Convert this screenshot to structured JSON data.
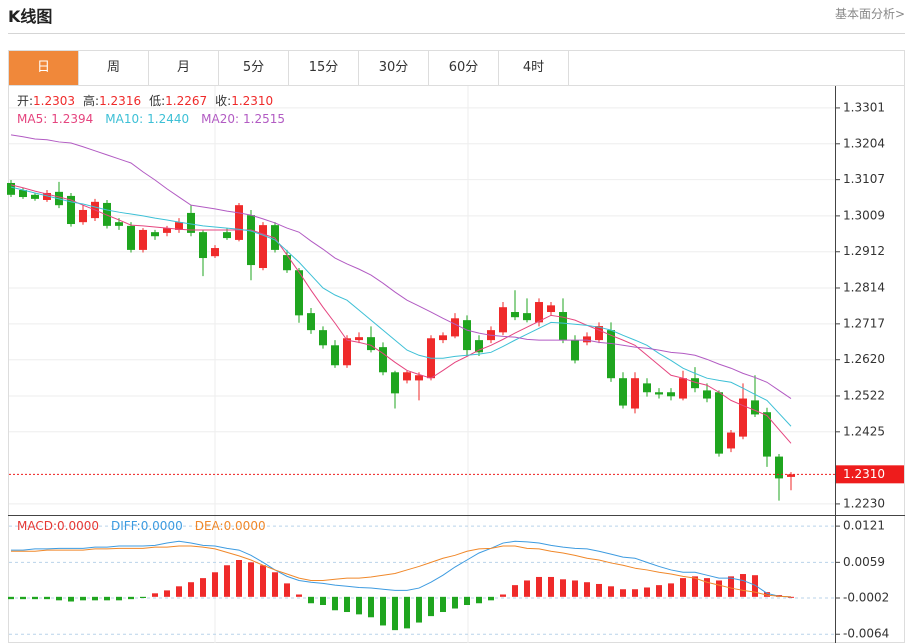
{
  "header": {
    "title": "K线图",
    "link": "基本面分析>"
  },
  "tabs": {
    "items": [
      "日",
      "周",
      "月",
      "5分",
      "15分",
      "30分",
      "60分",
      "4时"
    ],
    "active": 0
  },
  "chart_data": [
    {
      "type": "candlestick",
      "info": [
        {
          "label": "开:",
          "value": "1.2303"
        },
        {
          "label": "高:",
          "value": "1.2316"
        },
        {
          "label": "低:",
          "value": "1.2267"
        },
        {
          "label": "收:",
          "value": "1.2310"
        }
      ],
      "up_color": "#ef2a2a",
      "down_color": "#1fa51f",
      "open": [
        1.3098,
        1.3079,
        1.3066,
        1.3052,
        1.3074,
        1.3063,
        1.2992,
        1.3003,
        1.3044,
        1.2992,
        1.2982,
        1.2917,
        1.2965,
        1.2963,
        1.2971,
        1.3017,
        1.2965,
        1.29,
        1.2965,
        1.2944,
        1.3011,
        1.2868,
        1.2984,
        1.2903,
        1.2862,
        1.2746,
        1.27,
        1.2659,
        1.2605,
        1.2673,
        1.2681,
        1.2654,
        1.2586,
        1.2564,
        1.2564,
        1.257,
        1.2673,
        1.2683,
        1.2727,
        1.2673,
        1.2673,
        1.2694,
        1.2749,
        1.2746,
        1.2721,
        1.2749,
        1.2749,
        1.2673,
        1.2667,
        1.2673,
        1.27,
        1.257,
        1.2488,
        1.2556,
        1.2532,
        1.2532,
        1.2515,
        1.257,
        1.2537,
        1.2532,
        1.238,
        1.2412,
        1.251,
        1.2478,
        1.2358,
        1.2303
      ],
      "high": [
        1.3106,
        1.3085,
        1.3071,
        1.3079,
        1.3101,
        1.3071,
        1.3038,
        1.3055,
        1.3052,
        1.3003,
        1.2992,
        1.2976,
        1.2971,
        1.2982,
        1.3003,
        1.3038,
        1.2971,
        1.293,
        1.2976,
        1.3044,
        1.3025,
        1.2992,
        1.2992,
        1.2917,
        1.2868,
        1.276,
        1.271,
        1.2673,
        1.2686,
        1.2694,
        1.271,
        1.2667,
        1.259,
        1.259,
        1.2586,
        1.2686,
        1.2694,
        1.2746,
        1.274,
        1.2686,
        1.271,
        1.2776,
        1.2808,
        1.2786,
        1.2786,
        1.2776,
        1.2786,
        1.2686,
        1.2694,
        1.2721,
        1.2721,
        1.2586,
        1.2586,
        1.257,
        1.2543,
        1.2543,
        1.259,
        1.26,
        1.2556,
        1.2537,
        1.243,
        1.2556,
        1.2578,
        1.249,
        1.2365,
        1.2316
      ],
      "low": [
        1.306,
        1.3055,
        1.305,
        1.3047,
        1.303,
        1.298,
        1.2985,
        1.2995,
        1.2975,
        1.2971,
        1.291,
        1.291,
        1.2944,
        1.2954,
        1.2963,
        1.2954,
        1.2846,
        1.2895,
        1.2944,
        1.294,
        1.2835,
        1.2862,
        1.291,
        1.2855,
        1.272,
        1.269,
        1.265,
        1.2598,
        1.2598,
        1.2665,
        1.264,
        1.2578,
        1.2488,
        1.2556,
        1.251,
        1.2564,
        1.2665,
        1.2678,
        1.263,
        1.263,
        1.2665,
        1.2686,
        1.2727,
        1.2721,
        1.271,
        1.274,
        1.2665,
        1.261,
        1.2659,
        1.2665,
        1.256,
        1.2488,
        1.2475,
        1.252,
        1.2515,
        1.251,
        1.251,
        1.2532,
        1.2505,
        1.2358,
        1.237,
        1.2405,
        1.2465,
        1.233,
        1.2239,
        1.2267
      ],
      "close": [
        1.3066,
        1.306,
        1.3055,
        1.3071,
        1.3038,
        1.2987,
        1.3025,
        1.3047,
        1.2982,
        1.2982,
        1.2917,
        1.2971,
        1.2954,
        1.2976,
        1.2992,
        1.2963,
        1.2895,
        1.2922,
        1.2949,
        1.3038,
        1.2876,
        1.2984,
        1.2917,
        1.2862,
        1.274,
        1.27,
        1.2659,
        1.2605,
        1.2678,
        1.2681,
        1.2646,
        1.2586,
        1.2529,
        1.2586,
        1.2578,
        1.2678,
        1.2686,
        1.2732,
        1.2646,
        1.264,
        1.27,
        1.2762,
        1.2735,
        1.2727,
        1.2776,
        1.2767,
        1.2673,
        1.2618,
        1.2683,
        1.2711,
        1.257,
        1.2496,
        1.257,
        1.2532,
        1.2526,
        1.2521,
        1.257,
        1.2543,
        1.2515,
        1.2366,
        1.2423,
        1.2515,
        1.2472,
        1.2358,
        1.2299,
        1.231
      ],
      "series": [
        {
          "name": "MA5:",
          "value_label": "1.2394",
          "color": "#e5457f",
          "values": [
            1.3093,
            1.3085,
            1.3076,
            1.3068,
            1.306,
            1.3052,
            1.3038,
            1.3025,
            1.3011,
            1.2998,
            1.2984,
            1.2982,
            1.2979,
            1.2976,
            1.2973,
            1.2971,
            1.2971,
            1.2971,
            1.2971,
            1.2971,
            1.2971,
            1.296,
            1.2949,
            1.2903,
            1.2857,
            1.2808,
            1.2762,
            1.2719,
            1.2673,
            1.2667,
            1.2659,
            1.2637,
            1.2613,
            1.2591,
            1.258,
            1.257,
            1.2591,
            1.2613,
            1.2629,
            1.2646,
            1.2659,
            1.2675,
            1.2692,
            1.2708,
            1.2724,
            1.274,
            1.2735,
            1.2727,
            1.2713,
            1.27,
            1.2686,
            1.2673,
            1.2659,
            1.2632,
            1.2605,
            1.2578,
            1.257,
            1.2559,
            1.2551,
            1.2532,
            1.251,
            1.2496,
            1.2483,
            1.2469,
            1.2431,
            1.2394
          ]
        },
        {
          "name": "MA10:",
          "value_label": "1.2440",
          "color": "#3ec0d6",
          "values": [
            1.3087,
            1.3079,
            1.3071,
            1.3063,
            1.3055,
            1.3047,
            1.3041,
            1.3033,
            1.3025,
            1.3019,
            1.3014,
            1.3009,
            1.3003,
            1.2998,
            1.2992,
            1.2987,
            1.2982,
            1.2979,
            1.2976,
            1.2973,
            1.2968,
            1.2957,
            1.2944,
            1.2914,
            1.2884,
            1.2849,
            1.2814,
            1.2795,
            1.2781,
            1.2754,
            1.2727,
            1.27,
            1.2673,
            1.2646,
            1.2632,
            1.2624,
            1.2624,
            1.2629,
            1.2632,
            1.2635,
            1.264,
            1.2656,
            1.2673,
            1.2689,
            1.2705,
            1.2721,
            1.2719,
            1.2716,
            1.2713,
            1.2708,
            1.27,
            1.2686,
            1.2673,
            1.2659,
            1.2637,
            1.2618,
            1.2597,
            1.2583,
            1.257,
            1.2564,
            1.2559,
            1.2543,
            1.2526,
            1.251,
            1.2475,
            1.244
          ]
        },
        {
          "name": "MA20:",
          "value_label": "1.2515",
          "color": "#b25bc3",
          "values": [
            1.3228,
            1.3223,
            1.3217,
            1.3215,
            1.3209,
            1.3206,
            1.3196,
            1.3185,
            1.3174,
            1.3163,
            1.3152,
            1.3128,
            1.3106,
            1.3082,
            1.306,
            1.3038,
            1.3033,
            1.3028,
            1.3022,
            1.3017,
            1.3011,
            1.3001,
            1.299,
            1.2976,
            1.2965,
            1.2941,
            1.2919,
            1.2895,
            1.2879,
            1.2865,
            1.2849,
            1.2827,
            1.2803,
            1.2781,
            1.2765,
            1.2749,
            1.2732,
            1.2716,
            1.27,
            1.2692,
            1.2686,
            1.2683,
            1.2681,
            1.2675,
            1.2673,
            1.2673,
            1.2673,
            1.2673,
            1.2673,
            1.2667,
            1.2664,
            1.2659,
            1.2654,
            1.2651,
            1.2646,
            1.264,
            1.2637,
            1.2632,
            1.2621,
            1.2608,
            1.2597,
            1.2583,
            1.2572,
            1.2559,
            1.2537,
            1.2515
          ]
        }
      ],
      "ylim": [
        1.22,
        1.3363
      ],
      "yticks": [
        1.3301,
        1.3204,
        1.3107,
        1.3009,
        1.2912,
        1.2814,
        1.2717,
        {
          "value": 1.262,
          "label": "1.2620"
        },
        1.2522,
        1.2425,
        {
          "value": 1.223,
          "label": "1.2230"
        }
      ],
      "grid": true,
      "last_price": {
        "value": 1.231,
        "label": "1.2310",
        "color": "#ee1c1c"
      }
    },
    {
      "type": "macd",
      "up_color": "#ef2a2a",
      "down_color": "#1fa51f",
      "series": [
        {
          "name": "MACD:",
          "value_label": "0.0000",
          "color": "#e53935",
          "style": "bar",
          "values": [
            -0.0004,
            -0.0004,
            -0.0004,
            -0.0004,
            -0.0006,
            -0.0008,
            -0.0006,
            -0.0006,
            -0.0006,
            -0.0006,
            -0.0004,
            -0.0002,
            0.0006,
            0.0011,
            0.0018,
            0.0025,
            0.0032,
            0.0042,
            0.0054,
            0.0063,
            0.0059,
            0.0054,
            0.0042,
            0.0023,
            0.0004,
            -0.0011,
            -0.0014,
            -0.0023,
            -0.0026,
            -0.003,
            -0.0035,
            -0.0049,
            -0.0057,
            -0.0054,
            -0.0044,
            -0.0033,
            -0.0026,
            -0.002,
            -0.0014,
            -0.0011,
            -0.0006,
            0.0004,
            0.002,
            0.0028,
            0.0034,
            0.0034,
            0.003,
            0.0028,
            0.0025,
            0.0022,
            0.0018,
            0.0013,
            0.0013,
            0.0016,
            0.002,
            0.0023,
            0.0032,
            0.0035,
            0.0032,
            0.0028,
            0.0035,
            0.0039,
            0.0037,
            0.0008,
            0.0003,
            0.0
          ]
        },
        {
          "name": "DIFF:",
          "value_label": "0.0000",
          "color": "#3d9be0",
          "style": "line",
          "values": [
            0.008,
            0.008,
            0.0082,
            0.0082,
            0.0083,
            0.0083,
            0.0083,
            0.0085,
            0.0085,
            0.0087,
            0.0087,
            0.0087,
            0.0088,
            0.0092,
            0.0095,
            0.0092,
            0.0088,
            0.0087,
            0.0083,
            0.008,
            0.0071,
            0.0059,
            0.0046,
            0.0035,
            0.0028,
            0.0025,
            0.0023,
            0.002,
            0.0018,
            0.0016,
            0.0015,
            0.0013,
            0.0011,
            0.0011,
            0.0015,
            0.0025,
            0.0037,
            0.0051,
            0.0063,
            0.0075,
            0.0083,
            0.0092,
            0.0095,
            0.0094,
            0.0092,
            0.0088,
            0.0085,
            0.0083,
            0.0082,
            0.0078,
            0.0073,
            0.0068,
            0.0066,
            0.0059,
            0.0052,
            0.0046,
            0.0042,
            0.0042,
            0.0037,
            0.0032,
            0.0032,
            0.0028,
            0.002,
            0.0006,
            0.0001,
            0.0
          ]
        },
        {
          "name": "DEA:",
          "value_label": "0.0000",
          "color": "#f0882a",
          "style": "line",
          "values": [
            0.0078,
            0.0078,
            0.0078,
            0.008,
            0.008,
            0.008,
            0.008,
            0.0082,
            0.0082,
            0.0083,
            0.0083,
            0.0083,
            0.0085,
            0.0085,
            0.0087,
            0.0087,
            0.0085,
            0.0082,
            0.0076,
            0.007,
            0.0063,
            0.0054,
            0.0046,
            0.0039,
            0.0032,
            0.0028,
            0.0028,
            0.003,
            0.0032,
            0.0032,
            0.0034,
            0.0037,
            0.004,
            0.0046,
            0.0052,
            0.0059,
            0.0066,
            0.0071,
            0.0078,
            0.0082,
            0.0083,
            0.0087,
            0.0087,
            0.0083,
            0.0082,
            0.0078,
            0.0075,
            0.0071,
            0.0066,
            0.0063,
            0.0058,
            0.0054,
            0.0049,
            0.0046,
            0.0042,
            0.0039,
            0.0035,
            0.0032,
            0.0025,
            0.002,
            0.0015,
            0.0011,
            0.0008,
            0.0003,
            0.0001,
            0.0
          ]
        }
      ],
      "ylim": [
        -0.0079,
        0.014
      ],
      "yticks": [
        0.0121,
        0.0059,
        -0.0002,
        -0.0064
      ],
      "grid": true
    }
  ]
}
